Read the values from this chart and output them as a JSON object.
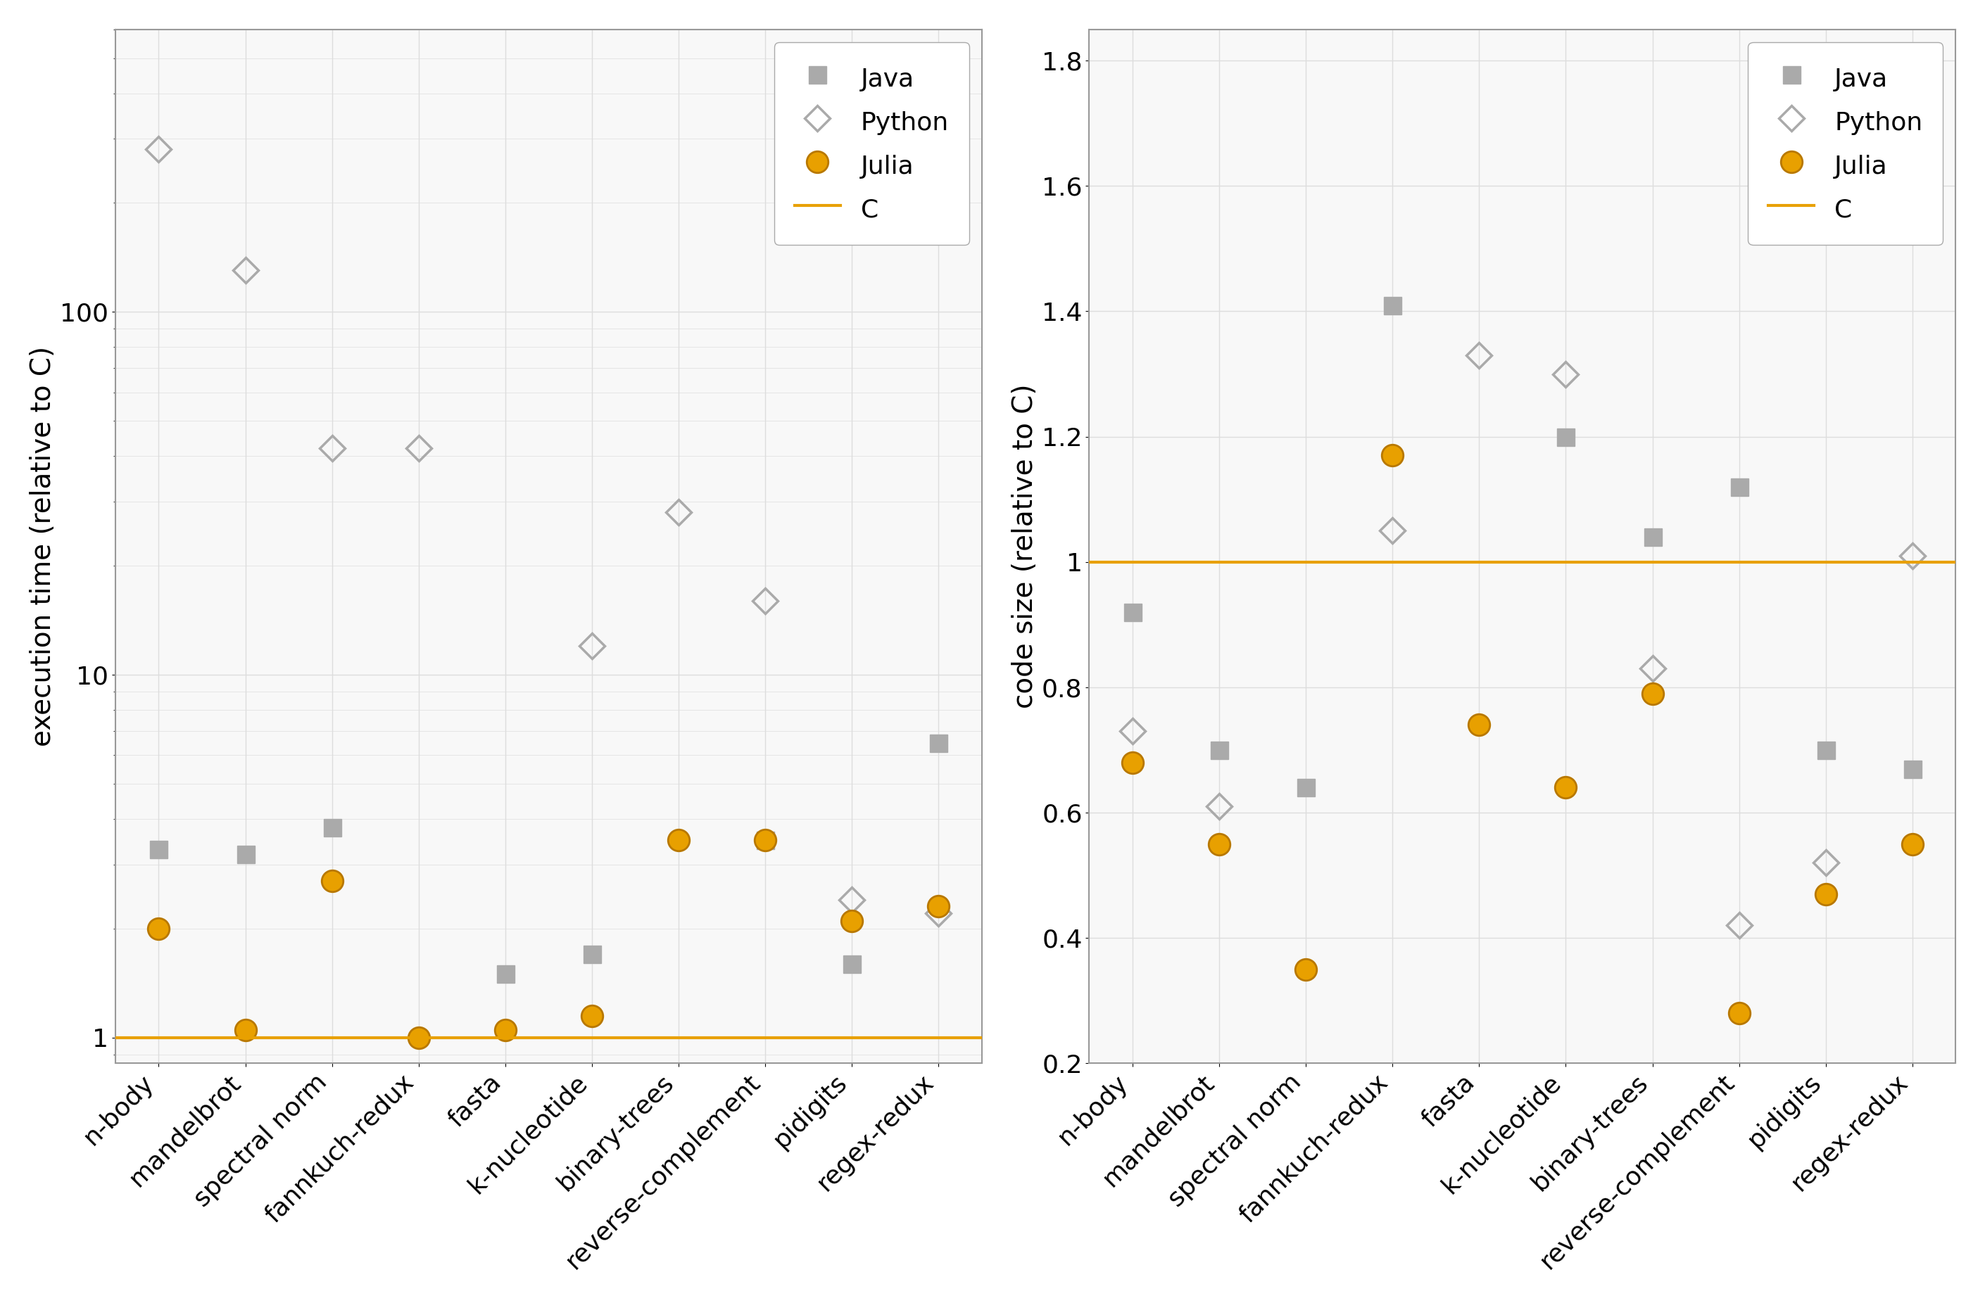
{
  "benchmarks": [
    "n-body",
    "mandelbrot",
    "spectral norm",
    "fannkuch-redux",
    "fasta",
    "k-nucleotide",
    "binary-trees",
    "reverse-complement",
    "pidigits",
    "regex-redux"
  ],
  "exec_java": [
    3.3,
    3.2,
    3.8,
    null,
    1.5,
    1.7,
    null,
    3.5,
    1.6,
    6.5
  ],
  "exec_python": [
    280,
    130,
    42,
    42,
    null,
    12,
    28,
    16,
    2.4,
    2.2
  ],
  "exec_julia": [
    2.0,
    1.05,
    2.7,
    1.0,
    1.05,
    1.15,
    3.5,
    3.5,
    2.1,
    2.3
  ],
  "code_java": [
    0.92,
    0.7,
    0.64,
    1.41,
    null,
    1.2,
    1.04,
    1.12,
    0.7,
    0.67
  ],
  "code_python": [
    0.73,
    0.61,
    null,
    1.05,
    1.33,
    1.3,
    0.83,
    0.42,
    0.52,
    1.01
  ],
  "code_julia": [
    0.68,
    0.55,
    0.35,
    1.17,
    0.74,
    0.64,
    0.79,
    0.28,
    0.47,
    0.55
  ],
  "java_color": "#aaaaaa",
  "python_color": "#aaaaaa",
  "julia_color": "#e8a000",
  "c_color": "#e8a000",
  "java_marker": "s",
  "python_marker": "D",
  "julia_marker": "o",
  "marker_size_java": 18,
  "marker_size_python": 18,
  "marker_size_julia": 22,
  "ylabel_left": "execution time (relative to C)",
  "ylabel_right": "code size (relative to C)",
  "fig_facecolor": "#ffffff",
  "ax_facecolor": "#f8f8f8",
  "grid_color": "#dddddd"
}
